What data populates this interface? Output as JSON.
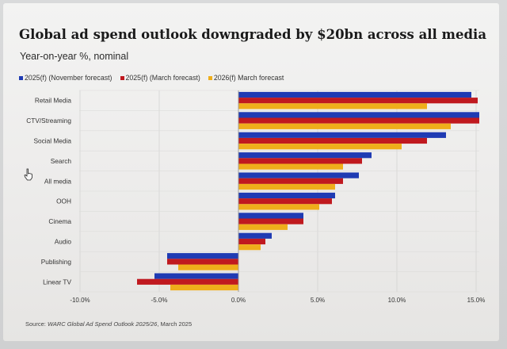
{
  "page": {
    "title": "Global ad spend outlook downgraded by $20bn across all media",
    "subtitle": "Year-on-year %, nominal",
    "source_prefix": "Source: ",
    "source_italic": "WARC Global Ad Spend Outlook 2025/26",
    "source_suffix": ", March 2025"
  },
  "chart_data": {
    "type": "bar",
    "orientation": "horizontal",
    "title": "Global ad spend outlook downgraded by $20bn across all media",
    "subtitle": "Year-on-year %, nominal",
    "categories": [
      "Retail Media",
      "CTV/Streaming",
      "Social Media",
      "Search",
      "All media",
      "OOH",
      "Cinema",
      "Audio",
      "Publishing",
      "Linear TV"
    ],
    "series": [
      {
        "name": "2025(f) (November forecast)",
        "color": "#1f3bb3",
        "values": [
          14.7,
          15.2,
          13.1,
          8.4,
          7.6,
          6.1,
          4.1,
          2.1,
          -4.5,
          -5.3
        ]
      },
      {
        "name": "2025(f) (March forecast)",
        "color": "#c0191f",
        "values": [
          15.1,
          15.2,
          11.9,
          7.8,
          6.6,
          5.9,
          4.1,
          1.7,
          -4.5,
          -6.4
        ]
      },
      {
        "name": "2026(f) March forecast",
        "color": "#efae1b",
        "values": [
          11.9,
          13.4,
          10.3,
          6.6,
          6.1,
          5.1,
          3.1,
          1.4,
          -3.8,
          -4.3
        ]
      }
    ],
    "xlim": [
      -10,
      15
    ],
    "x_ticks": [
      "-10.0%",
      "-5.0%",
      "0.0%",
      "5.0%",
      "10.0%",
      "15.0%"
    ],
    "x_tick_values": [
      -10,
      -5,
      0,
      5,
      10,
      15
    ],
    "grid": "vertical",
    "legend_position": "top-left"
  }
}
